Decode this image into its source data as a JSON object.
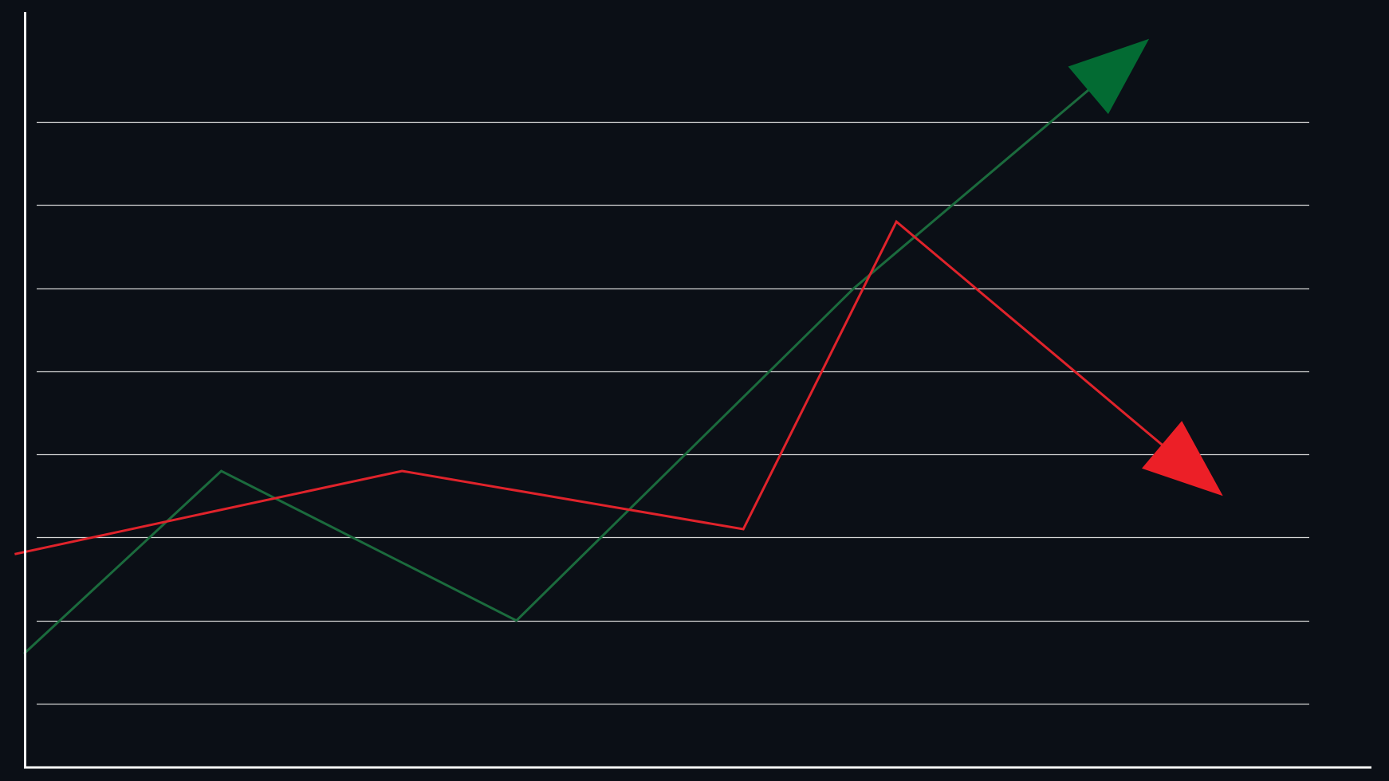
{
  "chart_data": {
    "type": "line",
    "title": "",
    "xlabel": "",
    "ylabel": "",
    "x": [
      0,
      1,
      2,
      3,
      4,
      5,
      6
    ],
    "xlim": [
      -0.05,
      6.9
    ],
    "ylim": [
      -0.8,
      8.4
    ],
    "grid": {
      "horizontal": true,
      "vertical": false,
      "levels": [
        0,
        1,
        2,
        3,
        4,
        5,
        6,
        7
      ]
    },
    "legend": "none",
    "series": [
      {
        "color": "#1b6b3d",
        "arrowhead_color": "#036b33",
        "direction": "up",
        "x": [
          0,
          1.07,
          2.67,
          4.5,
          6.1
        ],
        "values": [
          0.6,
          2.8,
          1.0,
          5.0,
          8.0
        ]
      },
      {
        "color": "#e0232b",
        "arrowhead_color": "#ec1f27",
        "direction": "down",
        "x": [
          -0.05,
          2.05,
          3.9,
          4.73,
          6.5
        ],
        "values": [
          1.8,
          2.8,
          2.1,
          5.8,
          2.5
        ]
      }
    ]
  },
  "colors": {
    "background": "#0b0f16",
    "gridline": "#d6d6d6",
    "axis": "#ffffff"
  }
}
